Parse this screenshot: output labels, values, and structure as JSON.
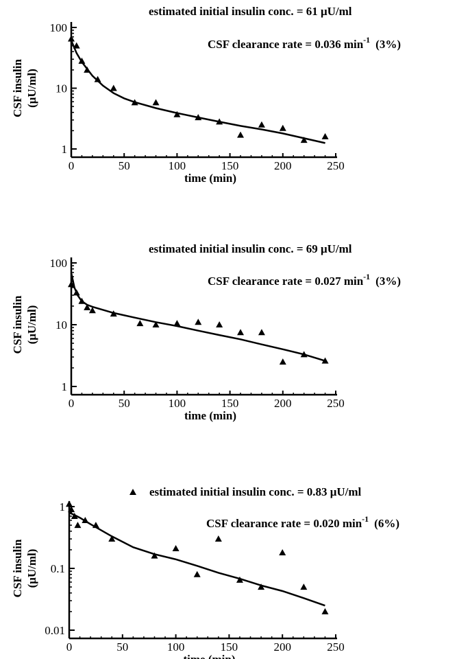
{
  "chart_data": [
    {
      "type": "scatter",
      "log_y": true,
      "xlabel": "time (min)",
      "ylabel": [
        "CSF insulin",
        "(μU/ml)"
      ],
      "xlim": [
        0,
        250
      ],
      "ylim": [
        1,
        100
      ],
      "x_ticks": [
        "0",
        "50",
        "100",
        "150",
        "200",
        "250"
      ],
      "y_ticks": [
        "1",
        "10",
        "100"
      ],
      "annotation_initial": "estimated initial insulin conc. = 61 μU/ml",
      "annotation_clearance": {
        "prefix": "CSF clearance rate = 0.036 min",
        "sup": "-1",
        "suffix": "(3%)"
      },
      "points": {
        "x": [
          0,
          5,
          10,
          15,
          25,
          40,
          60,
          80,
          100,
          120,
          140,
          160,
          180,
          200,
          220,
          240
        ],
        "y": [
          65,
          50,
          28,
          20,
          14,
          10,
          5.8,
          5.8,
          3.7,
          3.3,
          2.8,
          1.7,
          2.5,
          2.2,
          1.4,
          1.6
        ]
      },
      "fit": {
        "x": [
          0,
          5,
          10,
          20,
          30,
          40,
          50,
          60,
          80,
          100,
          120,
          140,
          160,
          180,
          200,
          220,
          240
        ],
        "y": [
          61,
          38,
          27,
          16,
          11,
          8.3,
          6.8,
          5.9,
          4.7,
          3.9,
          3.3,
          2.8,
          2.4,
          2.1,
          1.8,
          1.5,
          1.25
        ]
      }
    },
    {
      "type": "scatter",
      "log_y": true,
      "xlabel": "time (min)",
      "ylabel": [
        "CSF insulin",
        "(μU/ml)"
      ],
      "xlim": [
        0,
        250
      ],
      "ylim": [
        1,
        100
      ],
      "x_ticks": [
        "0",
        "50",
        "100",
        "150",
        "200",
        "250"
      ],
      "y_ticks": [
        "1",
        "10",
        "100"
      ],
      "annotation_initial": "estimated initial insulin conc. = 69 μU/ml",
      "annotation_clearance": {
        "prefix": "CSF clearance rate = 0.027 min",
        "sup": "-1",
        "suffix": "(3%)"
      },
      "points": {
        "x": [
          0,
          5,
          10,
          15,
          20,
          40,
          65,
          80,
          100,
          120,
          140,
          160,
          180,
          200,
          220,
          240
        ],
        "y": [
          45,
          33,
          24,
          19,
          17,
          15,
          10.5,
          10,
          10.5,
          11,
          10,
          7.5,
          7.5,
          2.5,
          3.3,
          2.6
        ]
      },
      "fit": {
        "x": [
          0,
          3,
          6,
          10,
          15,
          20,
          40,
          60,
          80,
          100,
          120,
          140,
          160,
          180,
          200,
          220,
          240
        ],
        "y": [
          69,
          40,
          30,
          24,
          21,
          19.5,
          15.5,
          13,
          11,
          9.5,
          8,
          6.8,
          5.8,
          4.8,
          4,
          3.3,
          2.6
        ]
      }
    },
    {
      "type": "scatter",
      "log_y": true,
      "xlabel": "time (min)",
      "ylabel": [
        "CSF insulin",
        "(μU/ml)"
      ],
      "xlim": [
        0,
        250
      ],
      "ylim": [
        0.01,
        1
      ],
      "x_ticks": [
        "0",
        "50",
        "100",
        "150",
        "200",
        "250"
      ],
      "y_ticks": [
        "0.01",
        "0.1",
        "1"
      ],
      "annotation_initial": "estimated initial insulin conc. = 0.83 μU/ml",
      "annotation_clearance": {
        "prefix": "CSF clearance rate = 0.020 min",
        "sup": "-1",
        "suffix": "(6%)"
      },
      "points": {
        "x": [
          0,
          2,
          5,
          8,
          15,
          25,
          40,
          80,
          100,
          120,
          140,
          160,
          180,
          200,
          220,
          240
        ],
        "y": [
          1.1,
          0.9,
          0.7,
          0.5,
          0.6,
          0.5,
          0.3,
          0.16,
          0.21,
          0.08,
          0.3,
          0.065,
          0.05,
          0.18,
          0.05,
          0.02
        ]
      },
      "fit": {
        "x": [
          0,
          5,
          10,
          20,
          40,
          60,
          80,
          100,
          120,
          140,
          160,
          180,
          200,
          220,
          240
        ],
        "y": [
          0.8,
          0.73,
          0.66,
          0.52,
          0.33,
          0.22,
          0.17,
          0.14,
          0.11,
          0.085,
          0.068,
          0.053,
          0.043,
          0.033,
          0.025
        ]
      }
    }
  ]
}
